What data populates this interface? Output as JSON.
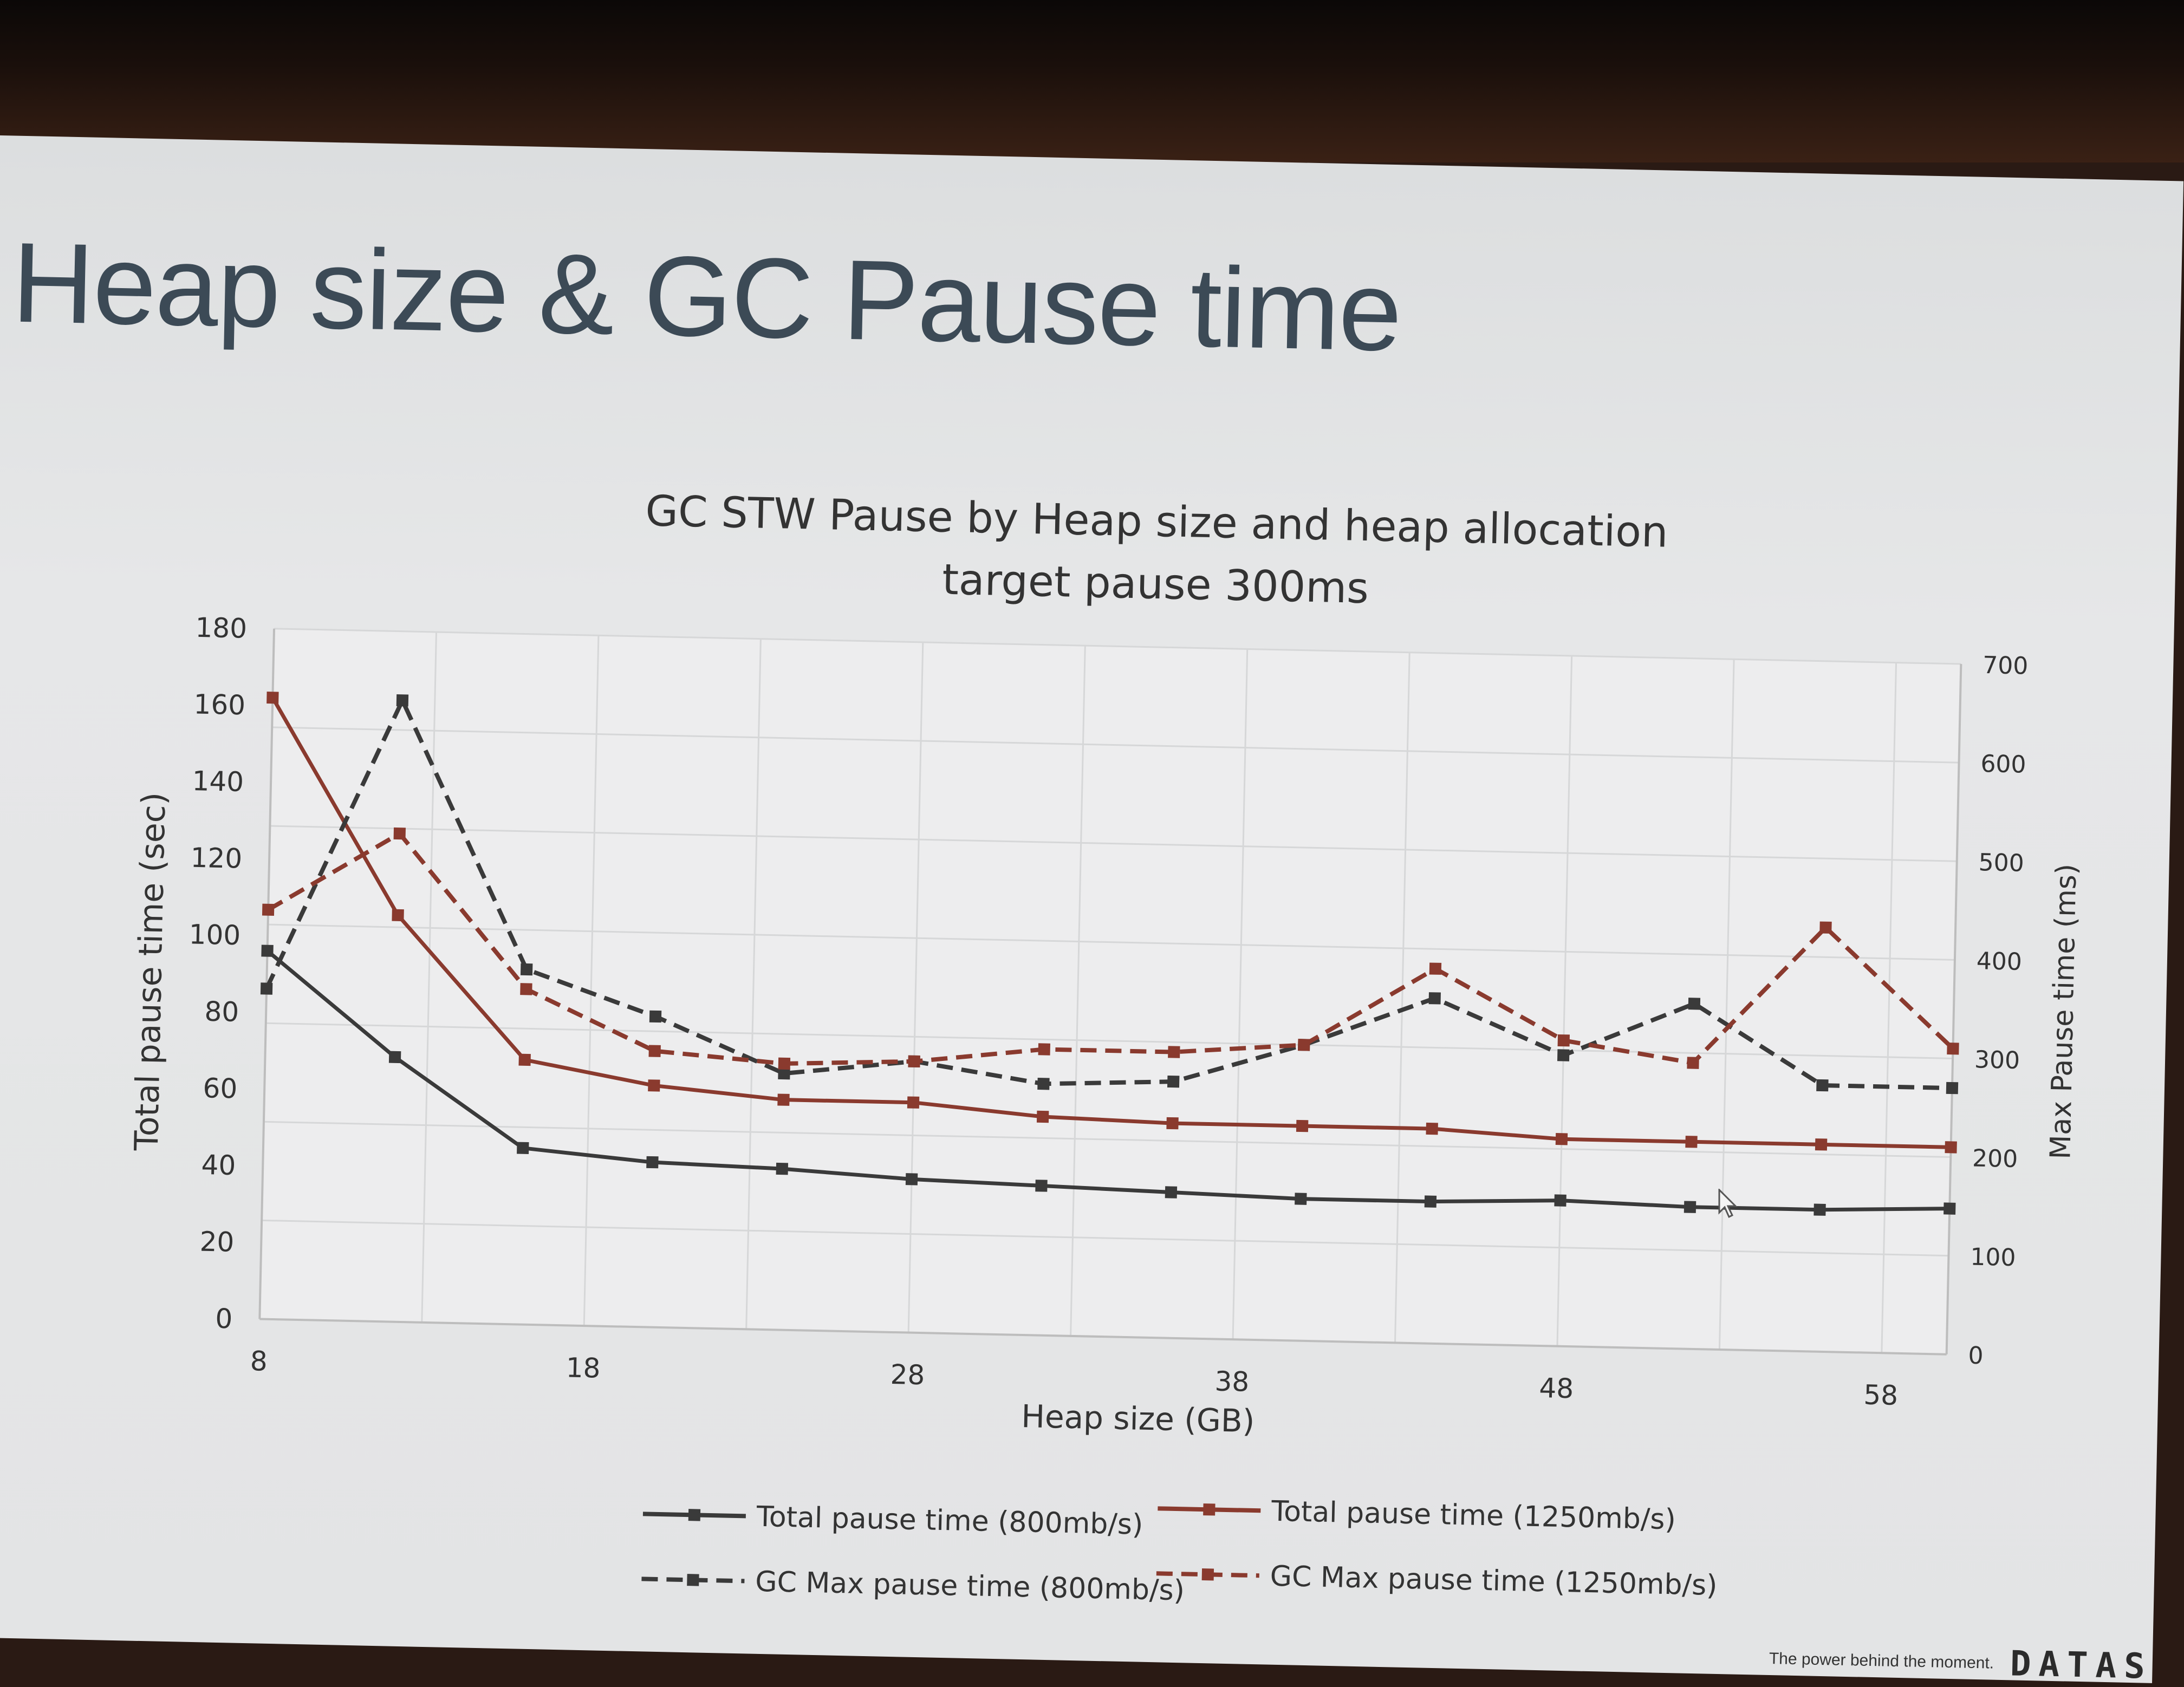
{
  "slide": {
    "title": "Heap size & GC Pause time",
    "footer_tagline": "The power behind the moment.",
    "footer_brand": "DATAS"
  },
  "chart_data": {
    "type": "line",
    "title": "GC STW Pause by Heap size and heap allocation",
    "subtitle": "target pause 300ms",
    "xlabel": "Heap size (GB)",
    "ylabel": "Total pause time (sec)",
    "y2label": "Max Pause time (ms)",
    "x_ticks": [
      8,
      18,
      28,
      38,
      48,
      58
    ],
    "y_ticks": [
      0,
      20,
      40,
      60,
      80,
      100,
      120,
      140,
      160,
      180
    ],
    "y2_ticks": [
      0,
      100,
      200,
      300,
      400,
      500,
      600,
      700
    ],
    "xlim": [
      8,
      60
    ],
    "ylim": [
      0,
      180
    ],
    "y2lim": [
      0,
      700
    ],
    "grid": true,
    "legend_position": "bottom",
    "x": [
      8,
      12,
      16,
      20,
      24,
      28,
      32,
      36,
      40,
      44,
      48,
      52,
      56,
      60
    ],
    "series": [
      {
        "name": "Total pause time (800mb/s)",
        "axis": "left",
        "style": "solid",
        "color": "#3a3a3a",
        "values": [
          96,
          69,
          46,
          43,
          42,
          40,
          39,
          38,
          37,
          37,
          38,
          37,
          37,
          38
        ]
      },
      {
        "name": "Total pause time (1250mb/s)",
        "axis": "left",
        "style": "solid",
        "color": "#8a3a2e",
        "values": [
          162,
          106,
          69,
          63,
          60,
          60,
          57,
          56,
          56,
          56,
          54,
          54,
          54,
          54
        ]
      },
      {
        "name": "GC Max pause time (800mb/s)",
        "axis": "right",
        "style": "dashed",
        "color": "#3a3a3a",
        "values": [
          335,
          630,
          360,
          315,
          260,
          275,
          255,
          260,
          300,
          350,
          295,
          350,
          270,
          270
        ]
      },
      {
        "name": "GC Max pause time (1250mb/s)",
        "axis": "right",
        "style": "dashed",
        "color": "#8a3a2e",
        "values": [
          415,
          495,
          340,
          280,
          270,
          275,
          290,
          290,
          300,
          380,
          310,
          290,
          430,
          310
        ]
      }
    ]
  }
}
